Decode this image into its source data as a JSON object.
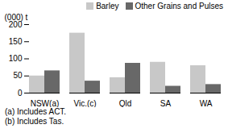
{
  "chart_data": {
    "type": "bar",
    "ylabel": "(000) t",
    "categories": [
      "NSW(a)",
      "Vic.(c)",
      "Qld",
      "SA",
      "WA"
    ],
    "series": [
      {
        "name": "Barley",
        "color": "#c8c8c8",
        "values": [
          50,
          175,
          45,
          90,
          80
        ]
      },
      {
        "name": "Other Grains and Pulses",
        "color": "#686868",
        "values": [
          65,
          35,
          87,
          20,
          25
        ]
      }
    ],
    "ylim": [
      0,
      200
    ],
    "yticks": [
      0,
      50,
      100,
      150,
      200
    ],
    "grid": false,
    "legend": "upper right",
    "annotations": [
      "(a) Includes ACT.",
      "(b) Includes Tas."
    ]
  }
}
